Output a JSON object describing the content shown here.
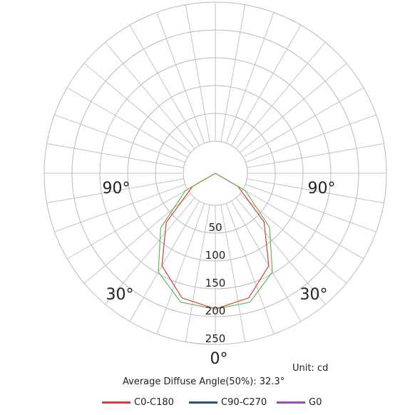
{
  "chart_data": {
    "type": "polar",
    "radial_ticks": [
      50,
      100,
      150,
      200,
      250
    ],
    "r_max": 250,
    "angle_labels": {
      "left_90": "90°",
      "right_90": "90°",
      "left_30": "30°",
      "right_30": "30°",
      "bottom_0": "0°"
    },
    "unit_text": "Unit: cd",
    "angle_text": "Average Diffuse Angle(50%): 32.3°",
    "series": [
      {
        "name": "C0-C180",
        "color": "#d93a3a",
        "points": [
          [
            -85,
            0
          ],
          [
            -60,
            47
          ],
          [
            -45,
            125
          ],
          [
            -30,
            192
          ],
          [
            -15,
            232
          ],
          [
            0,
            244
          ],
          [
            15,
            232
          ],
          [
            30,
            192
          ],
          [
            45,
            124
          ],
          [
            60,
            47
          ],
          [
            85,
            0
          ]
        ]
      },
      {
        "name": "C90-C270",
        "color": "#2b4f8c",
        "points": []
      },
      {
        "name": "G0",
        "color": "#9b4bb5",
        "points": [
          [
            -85,
            0
          ],
          [
            -60,
            62
          ],
          [
            -45,
            139
          ],
          [
            -30,
            205
          ],
          [
            -15,
            240
          ],
          [
            0,
            244
          ],
          [
            15,
            240
          ],
          [
            30,
            205
          ],
          [
            45,
            138
          ],
          [
            60,
            62
          ],
          [
            85,
            0
          ]
        ]
      }
    ],
    "legend_position": "bottom"
  }
}
